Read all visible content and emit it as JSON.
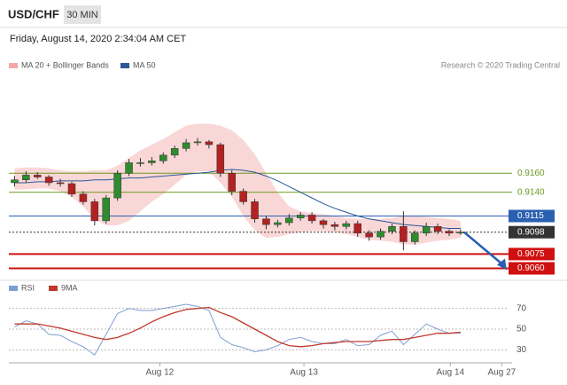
{
  "header": {
    "symbol": "USD/CHF",
    "interval": "30 MIN",
    "timestamp": "Friday, August 14, 2020 2:34:04 AM CET",
    "credit": "Research © 2020 Trading Central"
  },
  "chart_data": [
    {
      "type": "candlestick",
      "xlim": [
        0,
        44
      ],
      "ylim": [
        0.9053,
        0.926
      ],
      "open": [
        0.915,
        0.9153,
        0.9158,
        0.9156,
        0.915,
        0.9149,
        0.9138,
        0.913,
        0.911,
        0.9134,
        0.916,
        0.9171,
        0.9171,
        0.9173,
        0.9179,
        0.9186,
        0.9192,
        0.9193,
        0.919,
        0.916,
        0.9141,
        0.913,
        0.9112,
        0.9106,
        0.9108,
        0.9113,
        0.9116,
        0.911,
        0.9106,
        0.9104,
        0.9107,
        0.9097,
        0.9093,
        0.9099,
        0.9104,
        0.9088,
        0.9097,
        0.9104,
        0.9099,
        0.9097
      ],
      "high": [
        0.9157,
        0.9162,
        0.9161,
        0.9158,
        0.9154,
        0.9151,
        0.9141,
        0.9133,
        0.9137,
        0.9163,
        0.9175,
        0.9176,
        0.9177,
        0.9182,
        0.9189,
        0.9196,
        0.9197,
        0.9195,
        0.9192,
        0.9163,
        0.9144,
        0.9133,
        0.9115,
        0.9111,
        0.9117,
        0.9119,
        0.9119,
        0.9112,
        0.9109,
        0.911,
        0.911,
        0.91,
        0.9102,
        0.9107,
        0.912,
        0.91,
        0.9108,
        0.9107,
        0.9101,
        0.9101
      ],
      "low": [
        0.9146,
        0.915,
        0.9154,
        0.9147,
        0.9146,
        0.9135,
        0.9127,
        0.9105,
        0.9107,
        0.9131,
        0.9157,
        0.9167,
        0.9168,
        0.917,
        0.9176,
        0.9183,
        0.9189,
        0.9186,
        0.9156,
        0.9137,
        0.9127,
        0.9108,
        0.9101,
        0.9103,
        0.9105,
        0.911,
        0.9107,
        0.9102,
        0.91,
        0.9101,
        0.9093,
        0.9089,
        0.909,
        0.9096,
        0.9079,
        0.9085,
        0.9094,
        0.9096,
        0.9094,
        0.9095
      ],
      "close": [
        0.9153,
        0.9158,
        0.9156,
        0.915,
        0.9149,
        0.9138,
        0.913,
        0.911,
        0.9134,
        0.916,
        0.9171,
        0.9171,
        0.9173,
        0.9179,
        0.9186,
        0.9192,
        0.9193,
        0.919,
        0.916,
        0.9141,
        0.913,
        0.9112,
        0.9106,
        0.9108,
        0.9113,
        0.9116,
        0.911,
        0.9106,
        0.9104,
        0.9107,
        0.9097,
        0.9093,
        0.9099,
        0.9104,
        0.9088,
        0.9097,
        0.9104,
        0.9099,
        0.9097,
        0.9098
      ],
      "up_color": "#2e8b2e",
      "down_color": "#b22222",
      "series": [
        {
          "name": "MA 20 + Bollinger Bands",
          "color": "#f4a6a6",
          "upper": [
            0.9165,
            0.9166,
            0.9166,
            0.9165,
            0.9163,
            0.9162,
            0.9162,
            0.9163,
            0.9163,
            0.9168,
            0.9176,
            0.9184,
            0.919,
            0.9196,
            0.9203,
            0.921,
            0.9212,
            0.9212,
            0.921,
            0.9205,
            0.9195,
            0.918,
            0.916,
            0.914,
            0.9125,
            0.912,
            0.9118,
            0.9117,
            0.9115,
            0.9113,
            0.9112,
            0.9112,
            0.9112,
            0.9113,
            0.9115,
            0.9115,
            0.9114,
            0.9113,
            0.9112,
            0.911
          ],
          "lower": [
            0.9143,
            0.9143,
            0.9144,
            0.9144,
            0.9141,
            0.9135,
            0.9125,
            0.9112,
            0.9105,
            0.9105,
            0.911,
            0.912,
            0.913,
            0.9138,
            0.9148,
            0.9158,
            0.9162,
            0.9162,
            0.915,
            0.9135,
            0.9115,
            0.91,
            0.9092,
            0.9093,
            0.9096,
            0.9098,
            0.9099,
            0.9099,
            0.9098,
            0.9096,
            0.9093,
            0.909,
            0.9089,
            0.9088,
            0.9085,
            0.9085,
            0.9087,
            0.9089,
            0.909,
            0.9092
          ]
        },
        {
          "name": "MA 50",
          "color": "#2b5797",
          "values": [
            0.915,
            0.915,
            0.9151,
            0.9151,
            0.9152,
            0.9152,
            0.9152,
            0.9153,
            0.9153,
            0.9154,
            0.9155,
            0.9155,
            0.9156,
            0.9157,
            0.9158,
            0.9159,
            0.916,
            0.9161,
            0.9163,
            0.9164,
            0.9163,
            0.9161,
            0.9157,
            0.9152,
            0.9146,
            0.914,
            0.9134,
            0.9128,
            0.9123,
            0.9119,
            0.9115,
            0.9112,
            0.911,
            0.9108,
            0.9106,
            0.9105,
            0.9104,
            0.9103,
            0.9102,
            0.9102
          ]
        }
      ],
      "levels": [
        {
          "value": 0.916,
          "label": "0.9160",
          "color": "#6b9a1f",
          "boxed": false,
          "dotted": false
        },
        {
          "value": 0.914,
          "label": "0.9140",
          "color": "#6b9a1f",
          "boxed": false,
          "dotted": false
        },
        {
          "value": 0.9115,
          "label": "0.9115",
          "color": "#2b5fb0",
          "boxed": true,
          "dotted": false
        },
        {
          "value": 0.9098,
          "label": "0.9098",
          "color": "#333333",
          "boxed": true,
          "dotted": true
        },
        {
          "value": 0.9075,
          "label": "0.9075",
          "color": "#d01010",
          "boxed": true,
          "dotted": false
        },
        {
          "value": 0.906,
          "label": "0.9060",
          "color": "#d01010",
          "boxed": true,
          "dotted": false
        }
      ]
    },
    {
      "type": "line",
      "xlim": [
        0,
        44
      ],
      "ylim": [
        20,
        80
      ],
      "yticks": [
        30,
        50,
        70
      ],
      "grid": true,
      "xticks": [
        {
          "value": 13.2,
          "label": "Aug 12"
        },
        {
          "value": 25.8,
          "label": "Aug 13"
        },
        {
          "value": 38.6,
          "label": "Aug 14"
        },
        {
          "value": 43.1,
          "label": "Aug 27"
        }
      ],
      "series": [
        {
          "name": "RSI",
          "color": "#7f9fd4",
          "values": [
            52,
            58,
            55,
            45,
            44,
            38,
            33,
            25,
            45,
            65,
            70,
            68,
            68,
            70,
            72,
            74,
            72,
            68,
            42,
            35,
            32,
            28,
            30,
            34,
            40,
            42,
            38,
            36,
            36,
            40,
            34,
            35,
            44,
            48,
            35,
            45,
            55,
            50,
            46,
            46
          ]
        },
        {
          "name": "9MA",
          "color": "#c0392b",
          "values": [
            55,
            55,
            55,
            53,
            51,
            48,
            45,
            42,
            40,
            42,
            46,
            51,
            57,
            62,
            66,
            69,
            70,
            71,
            66,
            62,
            56,
            50,
            44,
            38,
            34,
            33,
            34,
            36,
            37,
            38,
            38,
            38,
            39,
            40,
            40,
            42,
            44,
            46,
            46,
            47
          ]
        }
      ]
    }
  ]
}
